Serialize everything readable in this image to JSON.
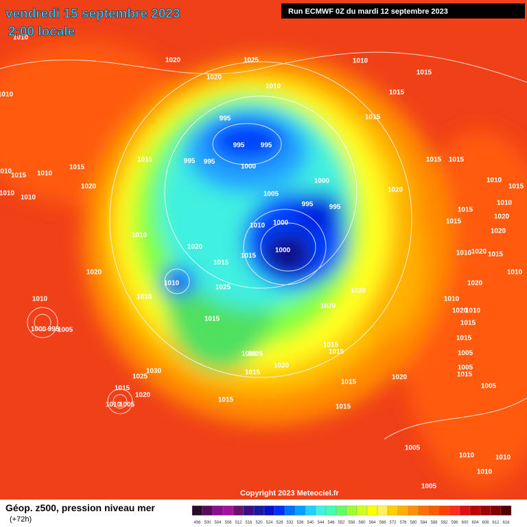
{
  "header": {
    "date": "vendredi 15 septembre 2023",
    "time": "2:00 locale",
    "run": "Run ECMWF 0Z du mardi 12 septembre 2023"
  },
  "footer": {
    "title": "Géop. z500, pression niveau mer",
    "lead": "(+72h)",
    "copyright": "Copyright 2023 Meteociel.fr"
  },
  "legend": {
    "levels": [
      "496",
      "500",
      "504",
      "508",
      "512",
      "516",
      "520",
      "524",
      "528",
      "532",
      "536",
      "540",
      "544",
      "548",
      "552",
      "556",
      "560",
      "564",
      "568",
      "572",
      "576",
      "580",
      "584",
      "588",
      "592",
      "596",
      "600",
      "604",
      "608",
      "612",
      "616"
    ],
    "colors": [
      "#2b0a2e",
      "#5a0a5e",
      "#8a0f8a",
      "#a0149a",
      "#6a1070",
      "#3a1080",
      "#1a1aa0",
      "#0a10d0",
      "#0030ff",
      "#0070ff",
      "#00a0ff",
      "#20d0ff",
      "#40f0e0",
      "#40ffb0",
      "#60ff70",
      "#a0ff30",
      "#d0ff20",
      "#ffff00",
      "#fff060",
      "#ffd000",
      "#ffb000",
      "#ff9000",
      "#ff7000",
      "#ff5a00",
      "#ff4000",
      "#ff2a20",
      "#e01010",
      "#c00000",
      "#a00000",
      "#800000",
      "#500000"
    ]
  },
  "isobars": [
    "1010",
    "1020",
    "1025",
    "1010",
    "1015",
    "1010",
    "1020",
    "1010",
    "1015",
    "995",
    "1015",
    "995",
    "995",
    "1015",
    "995",
    "995",
    "1000",
    "1015",
    "1015",
    "1015",
    "1010",
    "1015",
    "1010",
    "1000",
    "1010",
    "1015",
    "1020",
    "1020",
    "1010",
    "1010",
    "1005",
    "995",
    "995",
    "1015",
    "1010",
    "1015",
    "1020",
    "1010",
    "1000",
    "1010",
    "1020",
    "1020",
    "1000",
    "1015",
    "1015",
    "1010",
    "1020",
    "1015",
    "1020",
    "1010",
    "1010",
    "1025",
    "1020",
    "1010",
    "1020",
    "1010",
    "1010",
    "1020",
    "1020",
    "1010",
    "1015",
    "1015",
    "1000",
    "995",
    "1005",
    "1015",
    "1015",
    "1015",
    "1010",
    "1005",
    "1005",
    "1020",
    "1030",
    "1015",
    "1005",
    "1025",
    "1015",
    "1020",
    "1015",
    "1005",
    "1015",
    "1020",
    "1015",
    "1010",
    "1005",
    "1015",
    "1005",
    "1010",
    "1010",
    "1010",
    "1005"
  ]
}
